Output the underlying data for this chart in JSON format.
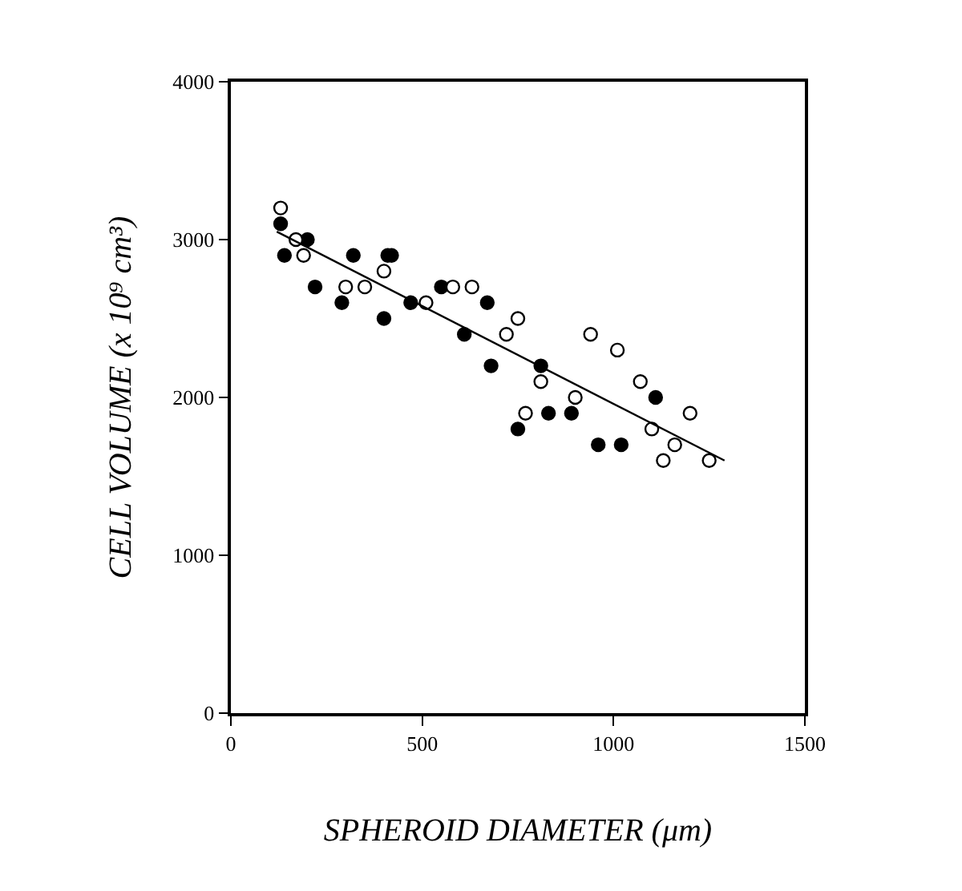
{
  "chart_data": {
    "type": "scatter",
    "xlabel": "SPHEROID DIAMETER (μm)",
    "ylabel": "CELL VOLUME (x 10⁹ cm³)",
    "xlim": [
      0,
      1500
    ],
    "xticks": [
      0,
      500,
      1000,
      1500
    ],
    "ylim": [
      0,
      4000
    ],
    "yticks": [
      0,
      1000,
      2000,
      3000,
      4000
    ],
    "marker": "circle",
    "series": [
      {
        "color": "#000000",
        "x": [
          130,
          140,
          200,
          220,
          290,
          320,
          400,
          410,
          420,
          470,
          550,
          610,
          670,
          680,
          750,
          810,
          830,
          890,
          960,
          1020,
          1110
        ],
        "values": [
          3100,
          2900,
          3000,
          2700,
          2600,
          2900,
          2500,
          2900,
          2900,
          2600,
          2700,
          2400,
          2600,
          2200,
          1800,
          2200,
          1900,
          1900,
          1700,
          1700,
          2000
        ]
      },
      {
        "color": "#ffffff",
        "x": [
          130,
          170,
          190,
          300,
          350,
          400,
          510,
          580,
          630,
          720,
          750,
          770,
          810,
          900,
          940,
          1010,
          1070,
          1100,
          1130,
          1160,
          1200,
          1250
        ],
        "values": [
          3200,
          3000,
          2900,
          2700,
          2700,
          2800,
          2600,
          2700,
          2700,
          2400,
          2500,
          1900,
          2100,
          2000,
          2400,
          2300,
          2100,
          1800,
          1600,
          1700,
          1900,
          1600
        ]
      },
      {
        "type": "line",
        "color": "#000000",
        "marker": "none",
        "x": [
          120,
          1290
        ],
        "values": [
          3050,
          1600
        ]
      }
    ]
  }
}
